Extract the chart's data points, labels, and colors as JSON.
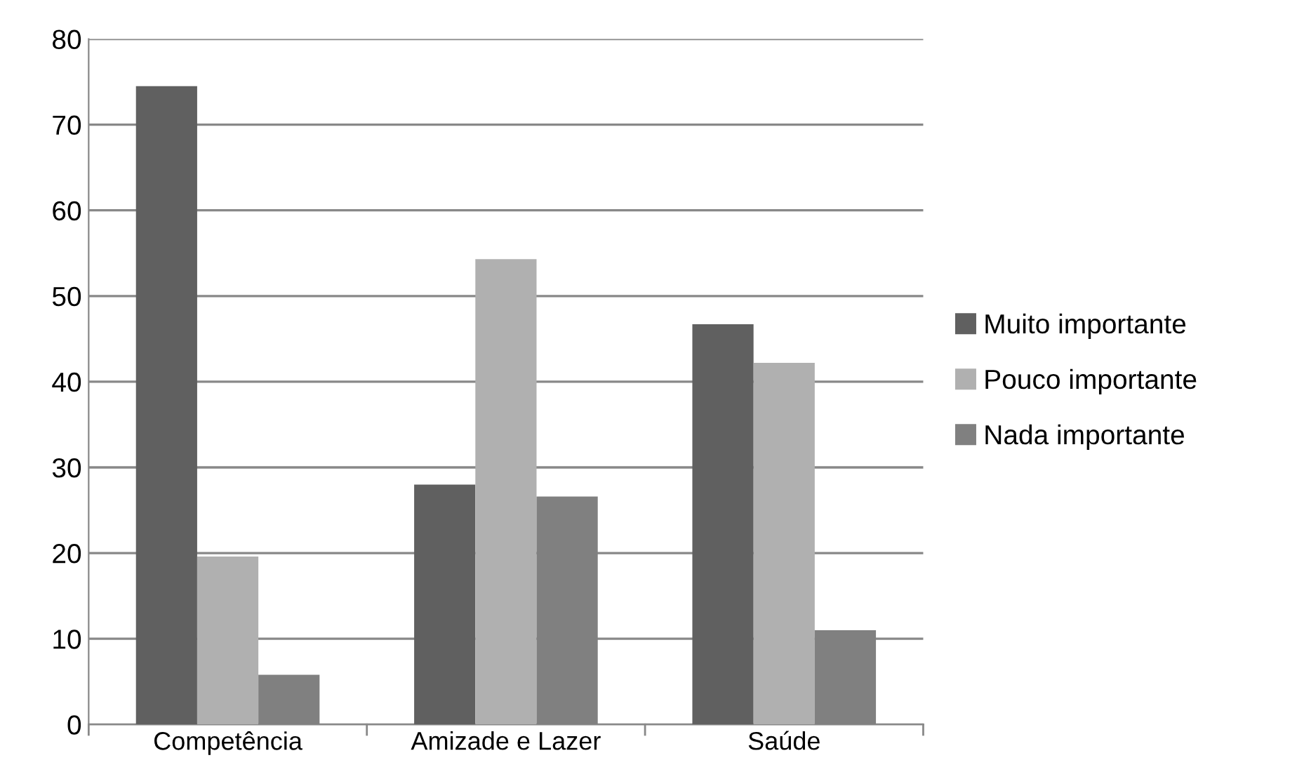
{
  "chart_data": {
    "type": "bar",
    "categories": [
      "Competência",
      "Amizade e Lazer",
      "Saúde"
    ],
    "series": [
      {
        "name": "Muito importante",
        "color": "#606060",
        "values": [
          74.5,
          28.0,
          46.7
        ]
      },
      {
        "name": "Pouco importante",
        "color": "#b0b0b0",
        "values": [
          19.6,
          54.3,
          42.2
        ]
      },
      {
        "name": "Nada importante",
        "color": "#808080",
        "values": [
          5.8,
          26.6,
          11.0
        ]
      }
    ],
    "ylim": [
      0,
      80
    ],
    "yticks": [
      0,
      10,
      20,
      30,
      40,
      50,
      60,
      70,
      80
    ],
    "grid": "y",
    "legend": "right"
  }
}
